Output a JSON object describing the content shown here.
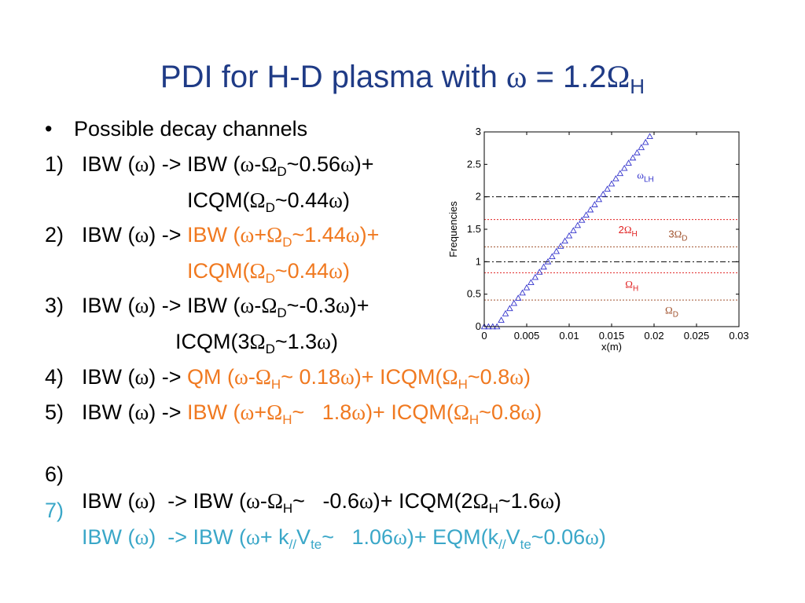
{
  "title": {
    "pre": "PDI for H-D plasma with ",
    "omega": "ω",
    "mid": " = 1.2",
    "Omega": "Ω",
    "sub": "H"
  },
  "bullet": {
    "mark": "•",
    "text": "Possible decay channels"
  },
  "items": [
    {
      "n": "1)",
      "a": "IBW (",
      "b": "ω",
      "c": ")  -> IBW (",
      "d": "ω",
      "e": "-",
      "f": "Ω",
      "g": "D",
      "h": "~0.56",
      "i": "ω",
      "j": ")+"
    },
    {
      "cont": "ICQM(",
      "f": "Ω",
      "g": "D",
      "h": "~0.44",
      "i": "ω",
      "j": ")"
    },
    {
      "n": "2)",
      "a": "IBW (",
      "b": "ω",
      "c": ")  -> ",
      "o1": "IBW (",
      "d": "ω",
      "e": "+",
      "f": "Ω",
      "g": "D",
      "h": "~1.44",
      "i": "ω",
      "j": ")+"
    },
    {
      "cont": "ICQM(",
      "f": "Ω",
      "g": "D",
      "h": "~0.44",
      "i": "ω",
      "j": ")"
    },
    {
      "n": "3)",
      "a": "IBW (",
      "b": "ω",
      "c": ")  -> IBW (",
      "d": "ω",
      "e": "-",
      "f": "Ω",
      "g": "D",
      "h": "~-0.3",
      "i": "ω",
      "j": ")+"
    },
    {
      "cont": "ICQM(3",
      "f": "Ω",
      "g": "D",
      "h": "~1.3",
      "i": "ω",
      "j": ")"
    },
    {
      "n": "4)",
      "a": "IBW (",
      "b": "ω",
      "c": ")  -> ",
      "o1": "QM (",
      "d": "ω",
      "e": "-",
      "f": "Ω",
      "g": "H",
      "h": "~ 0.18",
      "i": "ω",
      "j": ")+ ICQM(",
      "k": "Ω",
      "l": "H",
      "m": "~0.8",
      "p": "ω",
      "q": ")"
    },
    {
      "n": "5)",
      "a": "IBW (",
      "b": "ω",
      "c": ")  -> ",
      "o1": "IBW (",
      "d": "ω",
      "e": "+",
      "f": "Ω",
      "g": "H",
      "h": "~   1.8",
      "i": "ω",
      "j": ")+ ICQM(",
      "k": "Ω",
      "l": "H",
      "m": "~0.8",
      "p": "ω",
      "q": ")"
    },
    {
      "n": "6)",
      "a": "IBW (",
      "b": "ω",
      "c": ")  -> IBW (",
      "d": "ω",
      "e": "-",
      "f": "Ω",
      "g": "H",
      "h": "~   -0.6",
      "i": "ω",
      "j": ")+ ICQM(2",
      "k": "Ω",
      "l": "H",
      "m": "~1.6",
      "p": "ω",
      "q": ")"
    },
    {
      "n": "7)",
      "a": "IBW (",
      "b": "ω",
      "c": ")  -> IBW (",
      "d": "ω",
      "e": "+ k",
      "f": "//",
      "g": "V",
      "h": "te",
      "i": "~   1.06",
      "j": "ω",
      "k": ")+ EQM(k",
      "l": "//",
      "m": "V",
      "p": "te",
      "q": "~0.06",
      "r": "ω",
      "s": ")"
    }
  ],
  "colors": {
    "title": "#1f3b86",
    "orange": "#f07920",
    "cyan": "#3aa7c8",
    "lh": "#3333cc",
    "h": "#e02020",
    "d": "#a0522d"
  },
  "chart_data": {
    "type": "line",
    "xlabel": "x(m)",
    "ylabel": "Frequencies",
    "xlim": [
      0,
      0.03
    ],
    "ylim": [
      0,
      3
    ],
    "xticks": [
      "0",
      "0.005",
      "0.01",
      "0.015",
      "0.02",
      "0.025",
      "0.03"
    ],
    "yticks": [
      "0",
      "0.5",
      "1",
      "1.5",
      "2",
      "2.5",
      "3"
    ],
    "series": [
      {
        "name": "ωLH",
        "style": "triangles",
        "color": "#3333cc",
        "x": [
          0,
          0.0005,
          0.001,
          0.0015,
          0.002,
          0.0025,
          0.003,
          0.0035,
          0.004,
          0.0045,
          0.005,
          0.0055,
          0.006,
          0.0065,
          0.007,
          0.0075,
          0.008,
          0.0085,
          0.009,
          0.0095,
          0.01,
          0.0105,
          0.011,
          0.0115,
          0.012,
          0.0125,
          0.013,
          0.0135,
          0.014,
          0.0145,
          0.015,
          0.0155,
          0.016,
          0.0165,
          0.017,
          0.0175,
          0.018,
          0.0185,
          0.019,
          0.0195
        ],
        "y": [
          0,
          0,
          0,
          0,
          0.1,
          0.2,
          0.28,
          0.36,
          0.44,
          0.52,
          0.6,
          0.68,
          0.76,
          0.84,
          0.92,
          1.0,
          1.08,
          1.16,
          1.24,
          1.32,
          1.4,
          1.48,
          1.56,
          1.64,
          1.72,
          1.8,
          1.88,
          1.96,
          2.04,
          2.12,
          2.2,
          2.28,
          2.36,
          2.44,
          2.52,
          2.6,
          2.68,
          2.76,
          2.84,
          2.93
        ]
      }
    ],
    "hlines": [
      {
        "y": 2.0,
        "style": "dashdot",
        "color": "#000000"
      },
      {
        "y": 1.0,
        "style": "dashdot",
        "color": "#000000"
      },
      {
        "y": 1.65,
        "style": "dotted",
        "color": "#e02020"
      },
      {
        "y": 0.83,
        "style": "dotted",
        "color": "#e02020"
      },
      {
        "y": 1.23,
        "style": "dotted",
        "color": "#a0522d"
      },
      {
        "y": 0.41,
        "style": "dotted",
        "color": "#a0522d"
      }
    ],
    "annotations": [
      {
        "sym": "ω",
        "sub": "LH",
        "pre": "",
        "color": "#3333cc",
        "x": 0.018,
        "y": 2.28
      },
      {
        "sym": "Ω",
        "sub": "H",
        "pre": "2",
        "color": "#e02020",
        "x": 0.0158,
        "y": 1.44
      },
      {
        "sym": "Ω",
        "sub": "D",
        "pre": "3",
        "color": "#a0522d",
        "x": 0.0217,
        "y": 1.37
      },
      {
        "sym": "Ω",
        "sub": "H",
        "pre": "",
        "color": "#e02020",
        "x": 0.0166,
        "y": 0.6
      },
      {
        "sym": "Ω",
        "sub": "D",
        "pre": "",
        "color": "#a0522d",
        "x": 0.0213,
        "y": 0.2
      }
    ]
  }
}
